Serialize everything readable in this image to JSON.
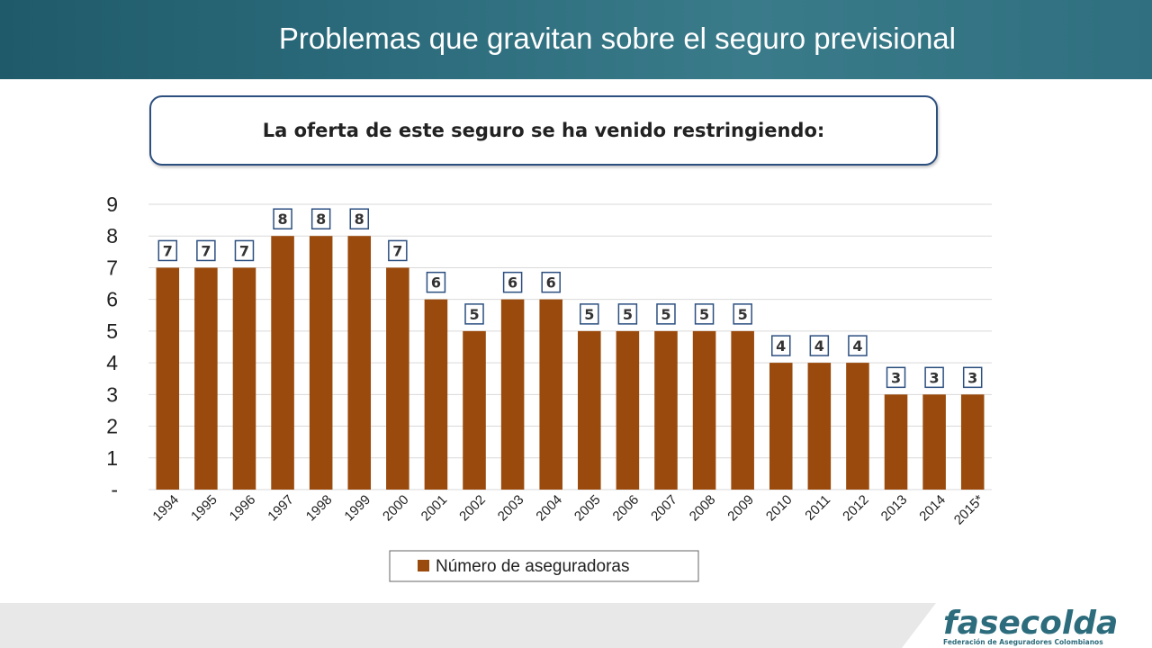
{
  "header": {
    "title": "Problemas que gravitan sobre el seguro previsional"
  },
  "subtitle": "La oferta de este seguro se ha venido restringiendo:",
  "colors": {
    "bar": "#9a4a0c",
    "header": "#2c6c7c",
    "label_border": "#2c4f80",
    "logo": "#2c6c7c"
  },
  "logo": {
    "name": "fasecolda",
    "tagline": "Federación de Aseguradores Colombianos"
  },
  "chart_data": {
    "type": "bar",
    "categories": [
      "1994",
      "1995",
      "1996",
      "1997",
      "1998",
      "1999",
      "2000",
      "2001",
      "2002",
      "2003",
      "2004",
      "2005",
      "2006",
      "2007",
      "2008",
      "2009",
      "2010",
      "2011",
      "2012",
      "2013",
      "2014",
      "2015*"
    ],
    "series": [
      {
        "name": "Número de aseguradoras",
        "values": [
          7,
          7,
          7,
          8,
          8,
          8,
          7,
          6,
          5,
          6,
          6,
          5,
          5,
          5,
          5,
          5,
          4,
          4,
          4,
          3,
          3,
          3
        ]
      }
    ],
    "y_tick_labels": [
      "-",
      "1",
      "2",
      "3",
      "4",
      "5",
      "6",
      "7",
      "8",
      "9"
    ],
    "ylim": [
      0,
      9
    ],
    "grid": true,
    "legend": "bottom"
  }
}
